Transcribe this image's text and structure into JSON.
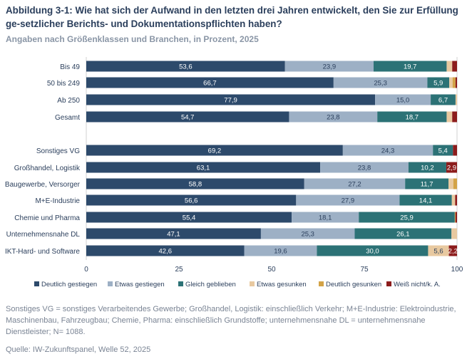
{
  "chart_data": {
    "type": "bar",
    "orientation": "horizontal-stacked",
    "title": "Abbildung 3-1: Wie hat sich der Aufwand in den letzten drei Jahren entwickelt, den Sie zur Erfüllung ge-setzlicher Berichts- und Dokumentationspflichten haben?",
    "subtitle": "Angaben nach Größenklassen und Branchen, in Prozent, 2025",
    "categories": [
      "Bis 49",
      "50 bis 249",
      "Ab 250",
      "Gesamt",
      "Sonstiges VG",
      "Großhandel, Logistik",
      "Baugewerbe, Versorger",
      "M+E-Industrie",
      "Chemie und Pharma",
      "Unternehmensnahe DL",
      "IKT-Hard- und Software"
    ],
    "series": [
      {
        "name": "Deutlich gestiegen",
        "color": "#2d4a6b",
        "values": [
          53.6,
          66.7,
          77.9,
          54.7,
          69.2,
          63.1,
          58.8,
          56.6,
          55.4,
          47.1,
          42.6
        ]
      },
      {
        "name": "Etwas gestiegen",
        "color": "#9db0c5",
        "values": [
          23.9,
          25.3,
          15.0,
          23.8,
          24.3,
          23.8,
          27.2,
          27.9,
          18.1,
          25.3,
          19.6
        ]
      },
      {
        "name": "Gleich geblieben",
        "color": "#2c7276",
        "values": [
          19.7,
          5.9,
          6.7,
          18.7,
          5.4,
          10.2,
          11.7,
          14.1,
          25.9,
          26.1,
          30.0
        ]
      },
      {
        "name": "Etwas gesunken",
        "color": "#e8c9a0",
        "values": [
          1.5,
          0.9,
          0.4,
          1.5,
          0,
          0,
          1.3,
          0.9,
          0,
          1.5,
          5.6
        ]
      },
      {
        "name": "Deutlich gesunken",
        "color": "#d3a347",
        "values": [
          0,
          0.8,
          0,
          0,
          0,
          0,
          1.0,
          0,
          0.2,
          0,
          0
        ]
      },
      {
        "name": "Weiß nicht/k. A.",
        "color": "#8c1c1c",
        "values": [
          1.3,
          0.4,
          0,
          1.3,
          1.1,
          2.9,
          0,
          0.5,
          0.4,
          0,
          2.2
        ]
      }
    ],
    "xlim": [
      0,
      100
    ],
    "xticks": [
      "0",
      "25",
      "50",
      "75",
      "100"
    ],
    "legend_position": "bottom",
    "grid": false
  },
  "footnote": "Sonstiges VG = sonstiges Verarbeitendes Gewerbe; Großhandel, Logistik: einschließlich Verkehr; M+E-Industrie: Elektroindustrie, Maschinenbau, Fahrzeugbau; Chemie, Pharma: einschließlich Grundstoffe; unternehmensnahe DL = unternehmensnahe Dienstleister; N= 1088.",
  "source": "Quelle: IW-Zukunftspanel, Welle 52, 2025"
}
